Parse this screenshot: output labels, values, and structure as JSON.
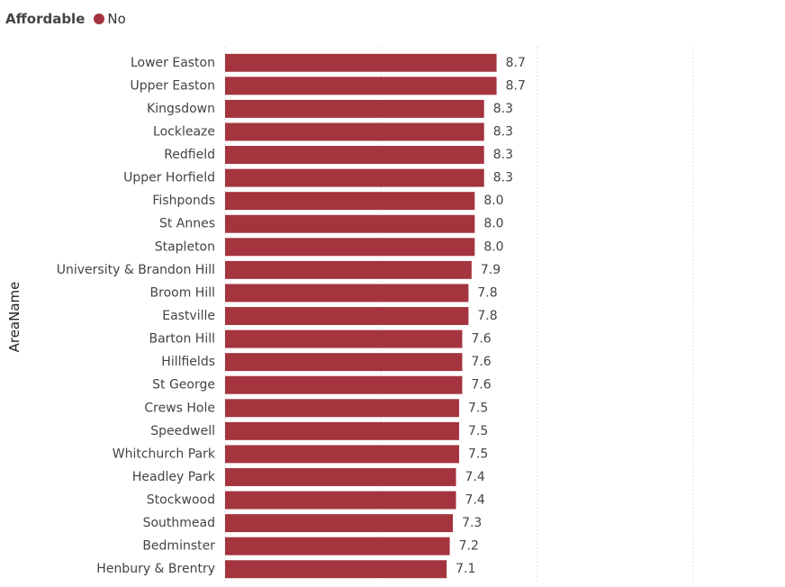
{
  "legend": {
    "title": "Affordable",
    "entries": [
      {
        "label": "No",
        "color": "#a4343e"
      }
    ]
  },
  "chart_data": {
    "type": "bar",
    "orientation": "horizontal",
    "title": "",
    "xlabel": "",
    "ylabel": "AreaName",
    "xlim": [
      0,
      15
    ],
    "gridlines": [
      0,
      5,
      10,
      15
    ],
    "grid": true,
    "bar_color": "#a4343e",
    "categories": [
      "Lower Easton",
      "Upper Easton",
      "Kingsdown",
      "Lockleaze",
      "Redfield",
      "Upper Horfield",
      "Fishponds",
      "St Annes",
      "Stapleton",
      "University & Brandon Hill",
      "Broom Hill",
      "Eastville",
      "Barton Hill",
      "Hillfields",
      "St George",
      "Crews Hole",
      "Speedwell",
      "Whitchurch Park",
      "Headley Park",
      "Stockwood",
      "Southmead",
      "Bedminster",
      "Henbury & Brentry"
    ],
    "series": [
      {
        "name": "No",
        "values": [
          8.7,
          8.7,
          8.3,
          8.3,
          8.3,
          8.3,
          8.0,
          8.0,
          8.0,
          7.9,
          7.8,
          7.8,
          7.6,
          7.6,
          7.6,
          7.5,
          7.5,
          7.5,
          7.4,
          7.4,
          7.3,
          7.2,
          7.1
        ],
        "labels": [
          "8.7",
          "8.7",
          "8.3",
          "8.3",
          "8.3",
          "8.3",
          "8.0",
          "8.0",
          "8.0",
          "7.9",
          "7.8",
          "7.8",
          "7.6",
          "7.6",
          "7.6",
          "7.5",
          "7.5",
          "7.5",
          "7.4",
          "7.4",
          "7.3",
          "7.2",
          "7.1"
        ]
      }
    ]
  }
}
